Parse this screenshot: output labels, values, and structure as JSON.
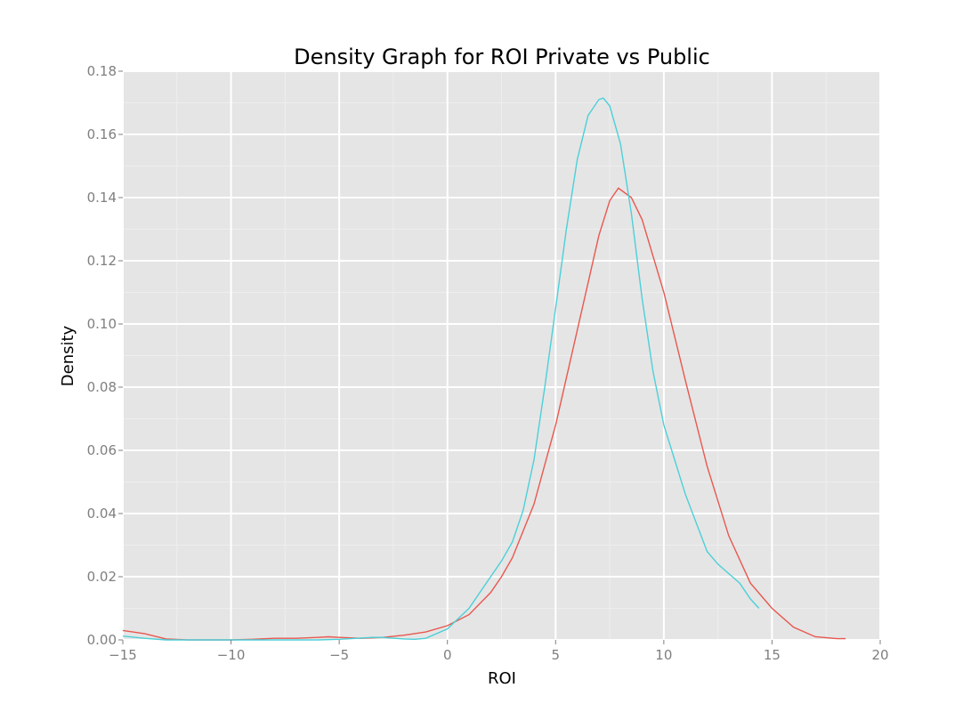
{
  "chart_data": {
    "type": "line",
    "title": "Density Graph for ROI Private vs Public",
    "xlabel": "ROI",
    "ylabel": "Density",
    "xlim": [
      -15,
      20
    ],
    "ylim": [
      0,
      0.18
    ],
    "xticks": [
      -15,
      -10,
      -5,
      0,
      5,
      10,
      15,
      20
    ],
    "xtick_labels": [
      "−15",
      "−10",
      "−5",
      "0",
      "5",
      "10",
      "15",
      "20"
    ],
    "yticks": [
      0,
      0.02,
      0.04,
      0.06,
      0.08,
      0.1,
      0.12,
      0.14,
      0.16,
      0.18
    ],
    "ytick_labels": [
      "0.00",
      "0.02",
      "0.04",
      "0.06",
      "0.08",
      "0.10",
      "0.12",
      "0.14",
      "0.16",
      "0.18"
    ],
    "grid": true,
    "background": "#e5e5e5",
    "grid_color": "#ffffff",
    "legend": "none",
    "series": [
      {
        "color": "#e8584f",
        "x": [
          -15,
          -14,
          -13,
          -12,
          -11,
          -10,
          -9,
          -8,
          -7,
          -6,
          -5.5,
          -5,
          -4,
          -3,
          -2,
          -1,
          0,
          1,
          2,
          2.5,
          3,
          4,
          5,
          6,
          7,
          7.5,
          7.9,
          8.5,
          9,
          10,
          11,
          12,
          13,
          14,
          15,
          16,
          17,
          18,
          18.4
        ],
        "y": [
          0.003,
          0.002,
          0.0003,
          0.0,
          0.0,
          0.0,
          0.0002,
          0.0005,
          0.0005,
          0.0008,
          0.001,
          0.0008,
          0.0005,
          0.0008,
          0.0015,
          0.0025,
          0.0045,
          0.008,
          0.015,
          0.02,
          0.026,
          0.043,
          0.068,
          0.098,
          0.128,
          0.139,
          0.143,
          0.14,
          0.133,
          0.11,
          0.082,
          0.055,
          0.033,
          0.018,
          0.01,
          0.004,
          0.001,
          0.0004,
          0.0004
        ]
      },
      {
        "color": "#4bd0d8",
        "x": [
          -15,
          -14,
          -13,
          -12,
          -11,
          -10,
          -9,
          -8,
          -7,
          -6,
          -5,
          -4,
          -3.5,
          -3,
          -2,
          -1.5,
          -1,
          0,
          1,
          2,
          2.5,
          3,
          3.5,
          4,
          4.5,
          5,
          5.5,
          6,
          6.5,
          7,
          7.2,
          7.5,
          8,
          8.5,
          9,
          9.5,
          10,
          11,
          12,
          12.5,
          13,
          13.5,
          14,
          14.4
        ],
        "y": [
          0.0012,
          0.0005,
          0.0,
          0.0,
          0.0,
          0.0,
          0.0,
          0.0,
          0.0,
          0.0,
          0.0002,
          0.0006,
          0.0008,
          0.0008,
          0.0003,
          0.0002,
          0.0005,
          0.0035,
          0.01,
          0.02,
          0.025,
          0.031,
          0.041,
          0.057,
          0.08,
          0.105,
          0.13,
          0.152,
          0.166,
          0.171,
          0.1715,
          0.169,
          0.157,
          0.135,
          0.108,
          0.085,
          0.068,
          0.046,
          0.028,
          0.024,
          0.021,
          0.018,
          0.013,
          0.01
        ]
      }
    ]
  }
}
